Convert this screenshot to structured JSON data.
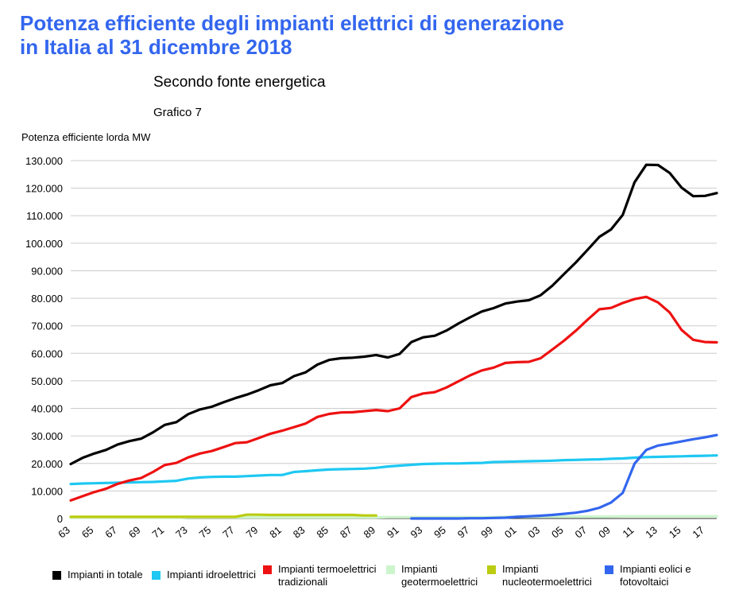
{
  "title_line1": "Potenza efficiente degli impianti elettrici di generazione",
  "title_line2": "in Italia al 31 dicembre 2018",
  "subtitle": "Secondo fonte energetica",
  "caption": "Grafico 7",
  "chart_data": {
    "type": "line",
    "ylabel": "Potenza efficiente lorda MW",
    "xlabel": "",
    "ylim": [
      0,
      130000
    ],
    "yticks": [
      "0",
      "10.000",
      "20.000",
      "30.000",
      "40.000",
      "50.000",
      "60.000",
      "70.000",
      "80.000",
      "90.000",
      "100.000",
      "110.000",
      "120.000",
      "130.000"
    ],
    "xticks": [
      "63",
      "65",
      "67",
      "69",
      "71",
      "73",
      "75",
      "77",
      "79",
      "81",
      "83",
      "85",
      "87",
      "89",
      "91",
      "93",
      "95",
      "97",
      "99",
      "01",
      "03",
      "05",
      "07",
      "09",
      "11",
      "13",
      "15",
      "17"
    ],
    "x_years": [
      1963,
      1964,
      1965,
      1966,
      1967,
      1968,
      1969,
      1970,
      1971,
      1972,
      1973,
      1974,
      1975,
      1976,
      1977,
      1978,
      1979,
      1980,
      1981,
      1982,
      1983,
      1984,
      1985,
      1986,
      1987,
      1988,
      1989,
      1990,
      1991,
      1992,
      1993,
      1994,
      1995,
      1996,
      1997,
      1998,
      1999,
      2000,
      2001,
      2002,
      2003,
      2004,
      2005,
      2006,
      2007,
      2008,
      2009,
      2010,
      2011,
      2012,
      2013,
      2014,
      2015,
      2016,
      2017,
      2018
    ],
    "grid": true,
    "legend_position": "bottom",
    "series": [
      {
        "name": "Impianti in totale",
        "color": "#000000",
        "values": [
          19800,
          22000,
          23600,
          24900,
          26900,
          28100,
          29000,
          31300,
          34000,
          35000,
          37900,
          39600,
          40600,
          42200,
          43700,
          45000,
          46600,
          48400,
          49200,
          51700,
          53100,
          55900,
          57600,
          58200,
          58400,
          58800,
          59400,
          58500,
          59800,
          64100,
          65800,
          66400,
          68300,
          70800,
          73100,
          75200,
          76400,
          78100,
          78800,
          79300,
          81100,
          84600,
          88800,
          93000,
          97600,
          102300,
          105000,
          110300,
          122100,
          128500,
          128400,
          125500,
          120200,
          117100,
          117200,
          118200
        ]
      },
      {
        "name": "Impianti idroelettrici",
        "color": "#1ec8f2",
        "values": [
          12500,
          12700,
          12800,
          12900,
          13000,
          13100,
          13200,
          13300,
          13500,
          13700,
          14500,
          14900,
          15100,
          15200,
          15200,
          15400,
          15600,
          15800,
          15800,
          16900,
          17200,
          17500,
          17800,
          17900,
          18000,
          18100,
          18400,
          18900,
          19200,
          19500,
          19800,
          19900,
          20000,
          20000,
          20100,
          20200,
          20500,
          20600,
          20700,
          20800,
          20900,
          21000,
          21200,
          21300,
          21400,
          21500,
          21700,
          21800,
          22100,
          22300,
          22400,
          22500,
          22600,
          22700,
          22800,
          22900
        ]
      },
      {
        "name": "Impianti termoelettrici\ntradizionali",
        "color": "#ee1111",
        "values": [
          6600,
          8100,
          9600,
          10800,
          12600,
          13800,
          14700,
          16900,
          19400,
          20200,
          22200,
          23600,
          24500,
          25900,
          27400,
          27700,
          29200,
          30800,
          31900,
          33200,
          34500,
          36900,
          38000,
          38500,
          38600,
          39000,
          39400,
          39000,
          40000,
          44100,
          45400,
          45900,
          47600,
          49800,
          52000,
          53800,
          54800,
          56500,
          56800,
          56900,
          58200,
          61400,
          64600,
          68200,
          72200,
          76000,
          76500,
          78300,
          79700,
          80500,
          78500,
          74800,
          68500,
          64900,
          64100,
          64000
        ]
      },
      {
        "name": "Impianti\ngeotermoelettrici",
        "color": "#ccf5cc",
        "values": [
          300,
          300,
          300,
          300,
          300,
          300,
          300,
          300,
          300,
          300,
          400,
          400,
          400,
          400,
          400,
          400,
          400,
          400,
          400,
          400,
          400,
          400,
          400,
          400,
          400,
          400,
          400,
          500,
          500,
          500,
          500,
          500,
          500,
          500,
          500,
          500,
          500,
          600,
          600,
          600,
          700,
          700,
          700,
          700,
          700,
          700,
          700,
          800,
          800,
          800,
          800,
          800,
          800,
          800,
          800,
          800
        ]
      },
      {
        "name": "Impianti\nnucleotermoelettrici",
        "color": "#bbcc11",
        "values": [
          600,
          600,
          600,
          600,
          600,
          600,
          600,
          600,
          600,
          600,
          600,
          600,
          600,
          600,
          600,
          1400,
          1400,
          1300,
          1300,
          1300,
          1300,
          1300,
          1300,
          1300,
          1300,
          1100,
          1100,
          null,
          null,
          null,
          null,
          null,
          null,
          null,
          null,
          null,
          null,
          null,
          null,
          null,
          null,
          null,
          null,
          null,
          null,
          null,
          null,
          null,
          null,
          null,
          null,
          null,
          null,
          null,
          null,
          null
        ]
      },
      {
        "name": "Impianti eolici e\nfotovoltaici",
        "color": "#3366ee",
        "values": [
          null,
          null,
          null,
          null,
          null,
          null,
          null,
          null,
          null,
          null,
          null,
          null,
          null,
          null,
          null,
          null,
          null,
          null,
          null,
          null,
          null,
          null,
          null,
          null,
          null,
          null,
          null,
          null,
          null,
          0,
          0,
          0,
          0,
          0,
          100,
          100,
          200,
          300,
          600,
          800,
          1000,
          1300,
          1700,
          2100,
          2800,
          3900,
          5800,
          9300,
          19900,
          24900,
          26500,
          27200,
          28000,
          28800,
          29500,
          30300
        ]
      }
    ]
  }
}
